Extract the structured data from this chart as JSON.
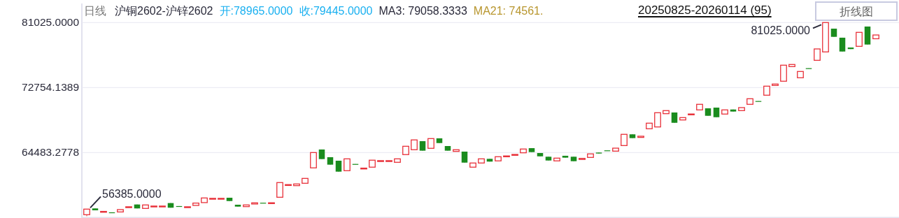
{
  "chart_data": {
    "type": "candlestick",
    "title": "沪铜2602-沪锌2602",
    "subtitle": "20250825-20260114 (95)",
    "annotations": [
      "日线",
      "开:78965.0000",
      "收:79445.0000",
      "MA3: 79058.3333",
      "MA21: 74561.",
      "56385.0000",
      "81025.0000",
      "折线图"
    ],
    "categories": [
      null,
      null,
      null,
      null,
      null,
      null,
      null,
      null,
      null,
      null,
      null,
      null,
      null,
      null,
      null,
      null,
      null,
      null,
      null,
      null,
      null,
      null,
      null,
      null,
      null,
      null,
      null,
      null,
      null,
      null,
      null,
      null,
      null,
      null,
      null,
      null,
      null,
      null,
      null,
      null,
      null,
      null,
      null,
      null,
      null,
      null,
      null,
      null,
      null,
      null,
      null,
      null,
      null,
      null,
      null,
      null,
      null,
      null,
      null,
      null,
      null,
      null,
      null,
      null,
      null,
      null,
      null,
      null,
      null,
      null,
      null,
      null,
      null,
      null,
      null,
      null,
      null,
      null,
      null,
      null,
      null,
      null,
      null,
      null,
      null,
      null,
      null,
      null,
      null,
      null,
      null,
      null,
      null,
      null,
      null
    ],
    "ohlc": [
      [
        56570,
        57280,
        56385,
        57280
      ],
      [
        57370,
        57370,
        57130,
        57130
      ],
      [
        56960,
        56990,
        56960,
        56990
      ],
      [
        56870,
        56870,
        56850,
        56850
      ],
      [
        56920,
        57220,
        56920,
        57220
      ],
      [
        57560,
        57580,
        57560,
        57580
      ],
      [
        57870,
        57870,
        57370,
        57370
      ],
      [
        57370,
        57810,
        57370,
        57810
      ],
      [
        57650,
        57670,
        57650,
        57670
      ],
      [
        57650,
        57670,
        57650,
        57670
      ],
      [
        58050,
        58050,
        57460,
        57460
      ],
      [
        57670,
        57670,
        57650,
        57650
      ],
      [
        57560,
        57580,
        57560,
        57580
      ],
      [
        57750,
        58050,
        57750,
        58050
      ],
      [
        58110,
        58700,
        58110,
        58700
      ],
      [
        58630,
        58650,
        58630,
        58650
      ],
      [
        58630,
        58650,
        58630,
        58650
      ],
      [
        58730,
        58730,
        58310,
        58310
      ],
      [
        57840,
        57840,
        57600,
        57600
      ],
      [
        57600,
        57810,
        57600,
        57810
      ],
      [
        57930,
        58080,
        57930,
        58080
      ],
      [
        58090,
        58090,
        58070,
        58070
      ],
      [
        58070,
        58090,
        58070,
        58090
      ],
      [
        58790,
        60660,
        58790,
        60660
      ],
      [
        60380,
        60400,
        60380,
        60400
      ],
      [
        60270,
        60480,
        60270,
        60480
      ],
      [
        60570,
        61190,
        60570,
        61190
      ],
      [
        62530,
        64480,
        62530,
        64480
      ],
      [
        64870,
        64870,
        63650,
        63650
      ],
      [
        63890,
        63890,
        62940,
        62940
      ],
      [
        63440,
        63440,
        62050,
        62050
      ],
      [
        62170,
        63680,
        62170,
        63680
      ],
      [
        63030,
        63030,
        63010,
        63010
      ],
      [
        62480,
        62500,
        62480,
        62500
      ],
      [
        62620,
        63510,
        62620,
        63510
      ],
      [
        63430,
        63450,
        63430,
        63450
      ],
      [
        63430,
        63450,
        63430,
        63450
      ],
      [
        63240,
        63680,
        63240,
        63680
      ],
      [
        64220,
        65280,
        64220,
        65280
      ],
      [
        64840,
        66090,
        64840,
        66090
      ],
      [
        65930,
        65930,
        64720,
        64720
      ],
      [
        65020,
        66260,
        65020,
        66260
      ],
      [
        66290,
        66290,
        65690,
        65690
      ],
      [
        65310,
        65310,
        64720,
        64720
      ],
      [
        64630,
        64840,
        64630,
        64840
      ],
      [
        64600,
        64600,
        63200,
        63200
      ],
      [
        62620,
        63150,
        62620,
        63150
      ],
      [
        63150,
        63680,
        63150,
        63680
      ],
      [
        63680,
        63680,
        63330,
        63330
      ],
      [
        63420,
        63950,
        63420,
        63950
      ],
      [
        64030,
        64050,
        64030,
        64050
      ],
      [
        64130,
        64240,
        64130,
        64240
      ],
      [
        64450,
        64930,
        64450,
        64930
      ],
      [
        65040,
        65040,
        64540,
        64540
      ],
      [
        64420,
        64420,
        64000,
        64000
      ],
      [
        63950,
        63950,
        63470,
        63470
      ],
      [
        63420,
        63770,
        63420,
        63770
      ],
      [
        64070,
        64070,
        63830,
        63830
      ],
      [
        63950,
        63950,
        63380,
        63380
      ],
      [
        63600,
        63740,
        63600,
        63740
      ],
      [
        63860,
        64310,
        63860,
        64310
      ],
      [
        64480,
        64480,
        64360,
        64360
      ],
      [
        64760,
        64760,
        64740,
        64740
      ],
      [
        64660,
        65040,
        64660,
        65040
      ],
      [
        65370,
        66800,
        65370,
        66800
      ],
      [
        66800,
        66800,
        66320,
        66320
      ],
      [
        66410,
        66560,
        66410,
        66560
      ],
      [
        67510,
        68220,
        67510,
        68220
      ],
      [
        67740,
        69550,
        67740,
        69550
      ],
      [
        69430,
        69820,
        69430,
        69820
      ],
      [
        69580,
        69580,
        68270,
        68270
      ],
      [
        68630,
        68930,
        68630,
        68930
      ],
      [
        69370,
        69390,
        69370,
        69390
      ],
      [
        69910,
        70620,
        69910,
        70620
      ],
      [
        70110,
        70110,
        69160,
        69160
      ],
      [
        70200,
        70200,
        68980,
        68980
      ],
      [
        69380,
        69910,
        69380,
        69910
      ],
      [
        69960,
        69960,
        69700,
        69700
      ],
      [
        69820,
        70200,
        69820,
        70200
      ],
      [
        70620,
        71330,
        70620,
        71330
      ],
      [
        71040,
        71040,
        71020,
        71020
      ],
      [
        71780,
        72930,
        71780,
        72930
      ],
      [
        73020,
        73200,
        73020,
        73200
      ],
      [
        73560,
        75600,
        73560,
        75600
      ],
      [
        75420,
        75690,
        75420,
        75690
      ],
      [
        74000,
        74800,
        74000,
        74800
      ],
      [
        75220,
        75220,
        75200,
        75200
      ],
      [
        76220,
        77670,
        76220,
        77670
      ],
      [
        77290,
        81025,
        77290,
        81025
      ],
      [
        80250,
        80250,
        79210,
        79210
      ],
      [
        79100,
        79100,
        77340,
        77340
      ],
      [
        77850,
        77850,
        77650,
        77650
      ],
      [
        78000,
        79780,
        78000,
        79780
      ],
      [
        80520,
        80520,
        78230,
        78230
      ],
      [
        78965,
        79445,
        78965,
        79445
      ]
    ],
    "ylim": [
      56212.4167,
      81025
    ],
    "yticks": [
      64483.2778,
      72754.1389,
      {
        "value": 81025,
        "label": "81025.0000"
      }
    ],
    "grid": "y"
  }
}
